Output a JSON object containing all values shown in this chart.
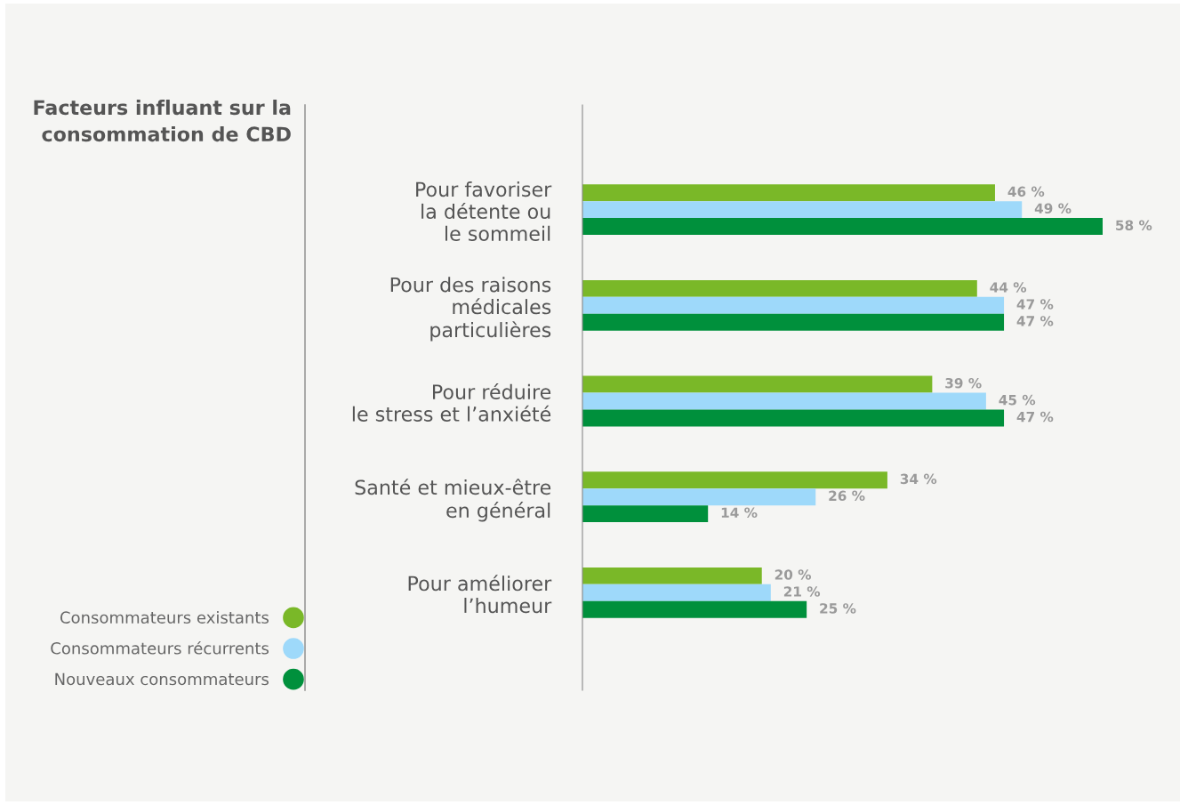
{
  "chart_data": {
    "type": "bar",
    "orientation": "horizontal",
    "title": "Facteurs influant sur la\nconsommation de CBD",
    "categories": [
      "Pour favoriser\nla détente ou\nle sommeil",
      "Pour des raisons\nmédicales\nparticulières",
      "Pour réduire\nle stress et l’anxiété",
      "Santé et mieux-être\nen général",
      "Pour améliorer\nl’humeur"
    ],
    "series": [
      {
        "name": "Consommateurs existants",
        "color": "#7ab828",
        "values": [
          46,
          44,
          39,
          34,
          20
        ],
        "value_labels": [
          "46 %",
          "44 %",
          "39 %",
          "34 %",
          "20 %"
        ]
      },
      {
        "name": "Consommateurs récurrents",
        "color": "#9ed9fa",
        "values": [
          49,
          47,
          45,
          26,
          21
        ],
        "value_labels": [
          "49 %",
          "47 %",
          "45 %",
          "26 %",
          "21 %"
        ]
      },
      {
        "name": "Nouveaux consommateurs",
        "color": "#00903c",
        "values": [
          58,
          47,
          47,
          14,
          25
        ],
        "value_labels": [
          "58 %",
          "47 %",
          "47 %",
          "14 %",
          "25 %"
        ]
      }
    ],
    "tick_labels": "y",
    "legend": "bottom left",
    "grid": false
  }
}
